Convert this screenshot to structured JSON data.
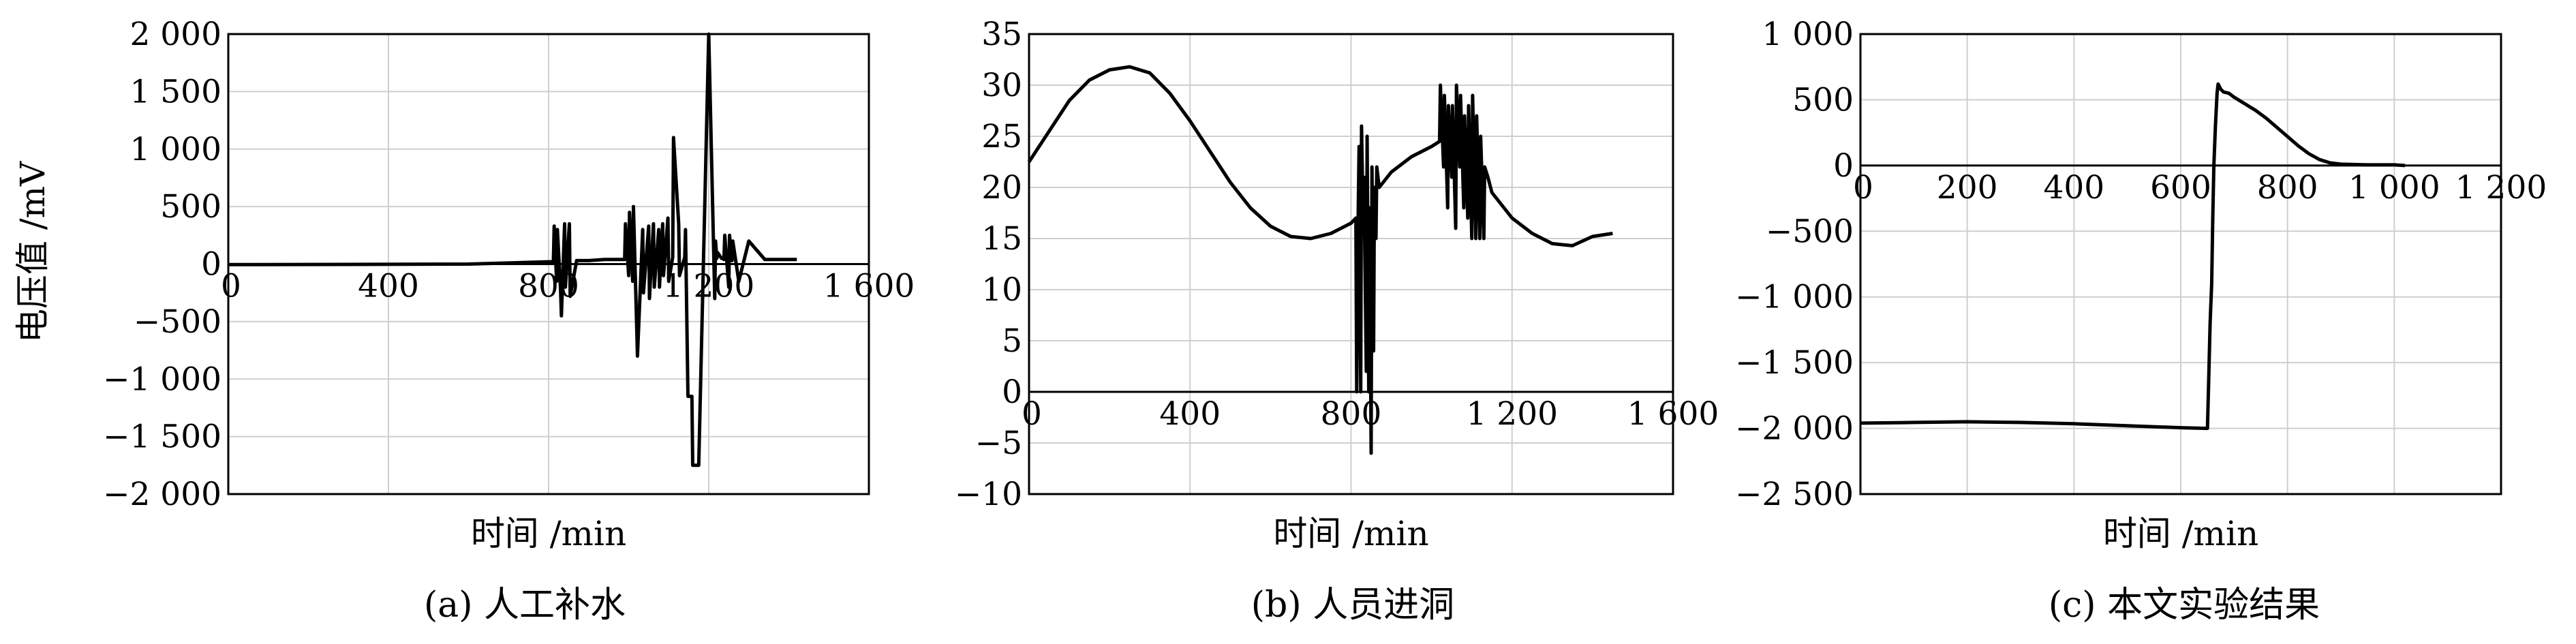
{
  "shared": {
    "ylabel": "电压值 /mV",
    "xlabel": "时间 /min"
  },
  "chart_data": [
    {
      "type": "line",
      "caption": "(a) 人工补水",
      "xlabel": "时间 /min",
      "ylabel": "电压值 /mV",
      "xlim": [
        0,
        1600
      ],
      "ylim": [
        -2000,
        2000
      ],
      "xticks": [
        0,
        400,
        800,
        1200,
        1600
      ],
      "xtick_labels": [
        "0",
        "400",
        "800",
        "1 200",
        "1 600"
      ],
      "yticks": [
        2000,
        1500,
        1000,
        500,
        0,
        -500,
        -1000,
        -1500,
        -2000
      ],
      "ytick_labels": [
        "2 000",
        "1 500",
        "1 000",
        "500",
        "0",
        "−500",
        "−1 000",
        "−1 500",
        "−2 000"
      ],
      "grid": true,
      "series": [
        {
          "x": [
            0,
            300,
            600,
            800,
            812,
            814,
            820,
            822,
            830,
            832,
            840,
            842,
            852,
            854,
            870,
            900,
            940,
            980,
            990,
            992,
            1000,
            1002,
            1010,
            1012,
            1020,
            1022,
            1035,
            1037,
            1050,
            1052,
            1062,
            1064,
            1075,
            1077,
            1085,
            1087,
            1098,
            1100,
            1110,
            1112,
            1125,
            1127,
            1140,
            1142,
            1148,
            1150,
            1158,
            1160,
            1175,
            1200,
            1215,
            1217,
            1220,
            1222,
            1232,
            1234,
            1238,
            1240,
            1250,
            1252,
            1258,
            1260,
            1275,
            1300,
            1340,
            1342,
            1348,
            1350,
            1360,
            1362,
            1368,
            1370,
            1380,
            1382,
            1390,
            1400,
            1420
          ],
          "y": [
            -5,
            -3,
            0,
            20,
            20,
            330,
            -150,
            300,
            -230,
            -450,
            350,
            -200,
            350,
            -280,
            30,
            30,
            40,
            40,
            40,
            350,
            -100,
            450,
            -150,
            500,
            -550,
            -800,
            300,
            -250,
            330,
            -300,
            350,
            -200,
            300,
            -200,
            350,
            -100,
            400,
            -150,
            60,
            1100,
            350,
            -100,
            60,
            300,
            -1150,
            -1150,
            -1150,
            -1750,
            -1750,
            2000,
            -300,
            200,
            50,
            100,
            50,
            50,
            40,
            250,
            -200,
            250,
            30,
            200,
            -150,
            200,
            40,
            40,
            40,
            40,
            40,
            40,
            40,
            40,
            40,
            40,
            40,
            40,
            40
          ]
        }
      ]
    },
    {
      "type": "line",
      "caption": "(b) 人员进洞",
      "xlabel": "时间 /min",
      "xlim": [
        0,
        1600
      ],
      "ylim": [
        -10,
        35
      ],
      "xticks": [
        0,
        400,
        800,
        1200,
        1600
      ],
      "xtick_labels": [
        "0",
        "400",
        "800",
        "1 200",
        "1 600"
      ],
      "yticks": [
        35,
        30,
        25,
        20,
        15,
        10,
        5,
        0,
        -5,
        -10
      ],
      "ytick_labels": [
        "35",
        "30",
        "25",
        "20",
        "15",
        "10",
        "5",
        "0",
        "−5",
        "−10"
      ],
      "grid": true,
      "series": [
        {
          "x": [
            0,
            50,
            100,
            150,
            200,
            250,
            300,
            350,
            400,
            450,
            500,
            550,
            600,
            650,
            700,
            750,
            800,
            812,
            814,
            818,
            820,
            824,
            826,
            830,
            832,
            838,
            840,
            844,
            846,
            850,
            852,
            856,
            858,
            862,
            864,
            870,
            900,
            950,
            1000,
            1020,
            1022,
            1030,
            1032,
            1040,
            1042,
            1050,
            1052,
            1060,
            1062,
            1070,
            1072,
            1080,
            1082,
            1090,
            1092,
            1100,
            1102,
            1110,
            1112,
            1120,
            1122,
            1130,
            1132,
            1140,
            1150,
            1200,
            1250,
            1300,
            1350,
            1400,
            1450
          ],
          "y": [
            22.5,
            25.5,
            28.5,
            30.5,
            31.5,
            31.8,
            31.2,
            29.2,
            26.5,
            23.5,
            20.5,
            18,
            16.2,
            15.2,
            15,
            15.5,
            16.5,
            17,
            0,
            18,
            24,
            0,
            26,
            17,
            21,
            2,
            25,
            0,
            18,
            -6,
            22,
            4,
            20,
            15,
            22,
            20,
            21.5,
            23,
            24,
            24.5,
            30,
            22,
            29,
            18,
            28,
            21,
            28,
            16,
            30,
            22,
            29,
            18,
            27,
            17,
            28,
            15,
            29,
            15,
            27,
            15,
            25,
            15,
            22,
            21,
            19.5,
            17,
            15.5,
            14.5,
            14.3,
            15.2,
            15.5
          ]
        }
      ]
    },
    {
      "type": "line",
      "caption": "(c) 本文实验结果",
      "xlabel": "时间 /min",
      "xlim": [
        0,
        1200
      ],
      "ylim": [
        -2500,
        1000
      ],
      "xticks": [
        0,
        200,
        400,
        600,
        800,
        1000,
        1200
      ],
      "xtick_labels": [
        "0",
        "200",
        "400",
        "600",
        "800",
        "1 000",
        "1 200"
      ],
      "yticks": [
        1000,
        500,
        0,
        -500,
        -1000,
        -1500,
        -2000,
        -2500
      ],
      "ytick_labels": [
        "1 000",
        "500",
        "0",
        "−500",
        "−1 000",
        "−1 500",
        "−2 000",
        "−2 500"
      ],
      "grid": true,
      "series": [
        {
          "x": [
            0,
            100,
            200,
            300,
            400,
            500,
            600,
            650,
            652,
            655,
            658,
            660,
            662,
            665,
            668,
            670,
            675,
            680,
            690,
            700,
            720,
            740,
            760,
            780,
            800,
            820,
            840,
            860,
            880,
            900,
            950,
            1000,
            1020
          ],
          "y": [
            -1960,
            -1955,
            -1950,
            -1955,
            -1965,
            -1980,
            -1995,
            -2000,
            -1700,
            -1200,
            -900,
            -400,
            0,
            300,
            550,
            620,
            580,
            560,
            550,
            520,
            470,
            420,
            360,
            290,
            220,
            150,
            90,
            45,
            20,
            10,
            5,
            5,
            0
          ]
        }
      ]
    }
  ]
}
